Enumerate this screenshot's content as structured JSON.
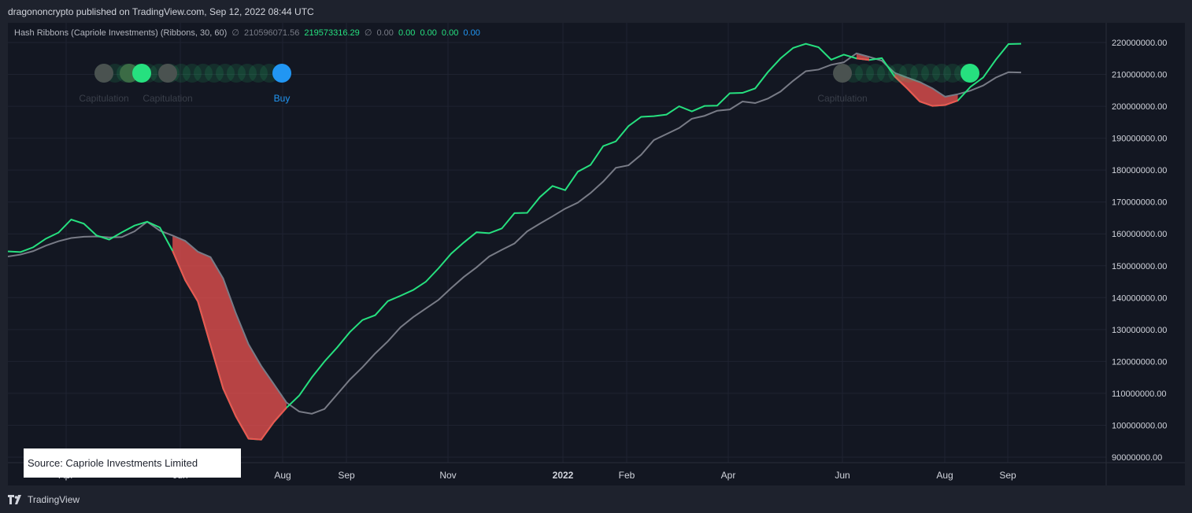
{
  "header": {
    "published_text": "dragononcrypto published on TradingView.com, Sep 12, 2022 08:44 UTC"
  },
  "legend": {
    "name": "Hash Ribbons (Capriole Investments) (Ribbons, 30, 60)",
    "v1": "210596071.56",
    "v2": "219573316.29",
    "v3": "0.00",
    "v4": "0.00",
    "v5": "0.00",
    "v6": "0.00",
    "v7": "0.00",
    "null_symbol": "∅",
    "colors": {
      "gray": "#787b86",
      "green": "#26e07f",
      "blue": "#2196f3"
    }
  },
  "footer": {
    "brand": "TradingView"
  },
  "source": {
    "text": "Source: Capriole Investments Limited"
  },
  "chart_data": {
    "type": "line",
    "x_tick_labels": [
      "Apr",
      "Jun",
      "Aug",
      "Sep",
      "Nov",
      "2022",
      "Feb",
      "Apr",
      "Jun",
      "Aug",
      "Sep"
    ],
    "y_tick_labels": [
      "220000000.00",
      "210000000.00",
      "200000000.00",
      "190000000.00",
      "180000000.00",
      "170000000.00",
      "160000000.00",
      "150000000.00",
      "140000000.00",
      "130000000.00",
      "120000000.00",
      "110000000.00",
      "100000000.00",
      "90000000.00"
    ],
    "ylim": [
      87000000,
      224000000
    ],
    "series": [
      {
        "color": "#26e07f",
        "values": [
          154.5,
          154.3,
          155.8,
          158.5,
          160.4,
          164.5,
          163.2,
          159.5,
          158.2,
          160.5,
          162.6,
          163.8,
          162.0,
          154.7,
          145.5,
          138.8,
          125.1,
          111.5,
          102.8,
          95.8,
          95.5,
          101.0,
          105.5,
          109.3,
          115.0,
          120.0,
          124.4,
          129.2,
          133.0,
          134.5,
          138.9,
          140.6,
          142.4,
          145.0,
          149.2,
          153.8,
          157.3,
          160.5,
          160.2,
          161.7,
          166.5,
          166.6,
          171.5,
          175.0,
          173.7,
          179.5,
          181.6,
          187.5,
          189.0,
          193.8,
          196.7,
          196.9,
          197.4,
          200.0,
          198.4,
          200.1,
          200.2,
          204.1,
          204.2,
          205.6,
          210.7,
          215.0,
          218.3,
          219.6,
          218.5,
          214.6,
          216.2,
          215.0,
          214.5,
          215.1,
          209.4,
          205.6,
          201.5,
          200.1,
          200.4,
          201.8,
          206.1,
          209.0,
          214.6,
          219.5,
          219.6
        ],
        "ribbon_red_when_below": true
      },
      {
        "color": "#787b86",
        "values": [
          152.9,
          153.5,
          154.6,
          156.3,
          157.7,
          158.7,
          159.1,
          159.2,
          158.9,
          159.0,
          160.8,
          163.8,
          161.0,
          159.5,
          157.8,
          154.4,
          152.7,
          146.0,
          135.1,
          125.4,
          118.6,
          112.9,
          107.1,
          104.3,
          103.6,
          105.1,
          109.7,
          114.3,
          118.2,
          122.5,
          126.3,
          130.7,
          133.9,
          136.6,
          139.3,
          143.0,
          146.5,
          149.5,
          152.9,
          155.0,
          157.0,
          160.8,
          163.2,
          165.5,
          167.9,
          169.8,
          172.8,
          176.4,
          180.7,
          181.5,
          184.8,
          189.4,
          191.3,
          193.2,
          196.1,
          197.0,
          198.6,
          199.0,
          201.5,
          201.0,
          202.4,
          204.6,
          208.0,
          211.0,
          211.5,
          213.0,
          213.8,
          216.6,
          215.5,
          214.3,
          210.5,
          209.0,
          207.6,
          205.6,
          203.0,
          203.8,
          204.9,
          206.5,
          209.0,
          210.7,
          210.6
        ]
      }
    ],
    "signals": [
      {
        "label": "Capitulation",
        "kind": "capitulation",
        "marker": "gray"
      },
      {
        "label": "",
        "kind": "recovery",
        "marker": "green-dim"
      },
      {
        "label": "Capitulation",
        "kind": "capitulation",
        "marker": "green"
      },
      {
        "label": "",
        "kind": "capitulation",
        "marker": "gray"
      },
      {
        "label": "Buy",
        "kind": "buy",
        "marker": "blue"
      },
      {
        "label": "Capitulation",
        "kind": "capitulation",
        "marker": "gray"
      },
      {
        "label": "",
        "kind": "recovery",
        "marker": "green"
      }
    ],
    "grid": true
  }
}
